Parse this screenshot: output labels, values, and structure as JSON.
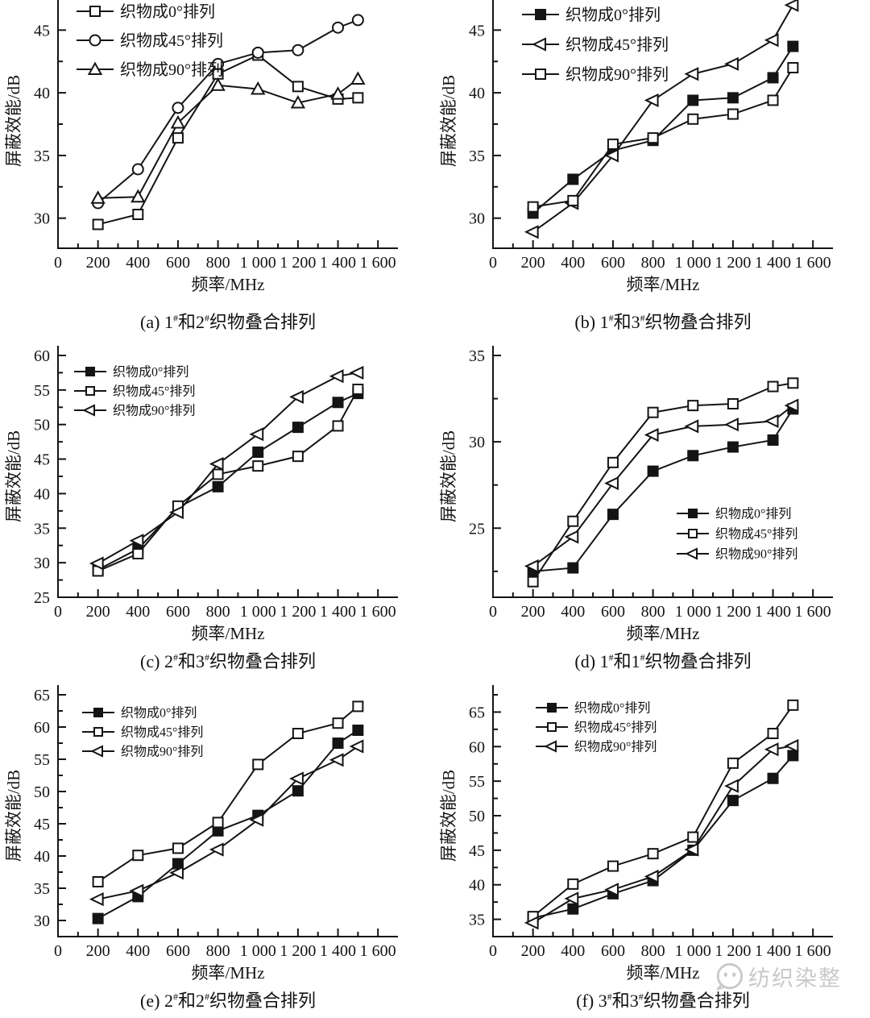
{
  "figure": {
    "background": "#ffffff",
    "line_color": "#141414",
    "watermark": {
      "icon": "wechat-account-icon",
      "text": "纺织染整",
      "color": "#c9c9c9"
    }
  },
  "chart_data": [
    {
      "id": "a",
      "type": "line",
      "caption": {
        "prefix": "(a) ",
        "f1": "1",
        "sup1": "#",
        "mid": "和",
        "f2": "2",
        "sup2": "#",
        "suffix": "织物叠合排列"
      },
      "xlabel": "频率/MHz",
      "ylabel": "屏蔽效能/dB",
      "x": [
        200,
        400,
        600,
        800,
        1000,
        1200,
        1400,
        1500
      ],
      "xlim": [
        0,
        1700
      ],
      "xticks": [
        0,
        200,
        400,
        600,
        800,
        1000,
        1200,
        1400,
        1600
      ],
      "ylim": [
        27.6,
        47.4
      ],
      "yticks": [
        30,
        35,
        40,
        45
      ],
      "grid": false,
      "legend_pos": "top-left",
      "series": [
        {
          "name": "织物成0°排列",
          "marker": "square-open",
          "values": [
            29.5,
            30.3,
            36.4,
            41.5,
            43.0,
            40.5,
            39.5,
            39.6
          ]
        },
        {
          "name": "织物成45°排列",
          "marker": "circle-open",
          "values": [
            31.2,
            33.9,
            38.8,
            42.3,
            43.2,
            43.4,
            45.2,
            45.8
          ]
        },
        {
          "name": "织物成90°排列",
          "marker": "triangle-up-open",
          "values": [
            31.6,
            31.7,
            37.6,
            40.6,
            40.3,
            39.2,
            39.9,
            41.1
          ]
        }
      ]
    },
    {
      "id": "b",
      "type": "line",
      "caption": {
        "prefix": "(b) ",
        "f1": "1",
        "sup1": "#",
        "mid": "和",
        "f2": "3",
        "sup2": "#",
        "suffix": "织物叠合排列"
      },
      "xlabel": "频率/MHz",
      "ylabel": "屏蔽效能/dB",
      "x": [
        200,
        400,
        600,
        800,
        1000,
        1200,
        1400,
        1500
      ],
      "xlim": [
        0,
        1700
      ],
      "xticks": [
        0,
        200,
        400,
        600,
        800,
        1000,
        1200,
        1400,
        1600
      ],
      "ylim": [
        27.6,
        47.4
      ],
      "yticks": [
        30,
        35,
        40,
        45
      ],
      "grid": false,
      "legend_pos": "top-left",
      "series": [
        {
          "name": "织物成0°排列",
          "marker": "square-filled",
          "values": [
            30.4,
            33.1,
            35.4,
            36.2,
            39.4,
            39.6,
            41.2,
            43.7
          ]
        },
        {
          "name": "织物成45°排列",
          "marker": "triangle-left-open",
          "values": [
            28.9,
            31.2,
            35.0,
            39.4,
            41.5,
            42.3,
            44.2,
            47.0
          ]
        },
        {
          "name": "织物成90°排列",
          "marker": "square-open",
          "values": [
            30.9,
            31.4,
            35.9,
            36.4,
            37.9,
            38.3,
            39.4,
            42.0
          ]
        }
      ]
    },
    {
      "id": "c",
      "type": "line",
      "caption": {
        "prefix": "(c) ",
        "f1": "2",
        "sup1": "#",
        "mid": "和",
        "f2": "3",
        "sup2": "#",
        "suffix": "织物叠合排列"
      },
      "xlabel": "频率/MHz",
      "ylabel": "屏蔽效能/dB",
      "x": [
        200,
        400,
        600,
        800,
        1000,
        1200,
        1400,
        1500
      ],
      "xlim": [
        0,
        1700
      ],
      "xticks": [
        0,
        200,
        400,
        600,
        800,
        1000,
        1200,
        1400,
        1600
      ],
      "ylim": [
        25,
        60
      ],
      "yticks": [
        25,
        30,
        35,
        40,
        45,
        50,
        55,
        60
      ],
      "grid": false,
      "legend_pos": "top-left",
      "series": [
        {
          "name": "织物成0°排列",
          "marker": "square-filled",
          "values": [
            29.0,
            32.0,
            38.0,
            41.0,
            46.0,
            49.6,
            53.2,
            54.5
          ]
        },
        {
          "name": "织物成45°排列",
          "marker": "square-open",
          "values": [
            28.8,
            31.3,
            38.2,
            42.8,
            44.0,
            45.4,
            49.8,
            55.1
          ]
        },
        {
          "name": "织物成90°排列",
          "marker": "triangle-left-open",
          "values": [
            29.9,
            33.2,
            37.3,
            44.3,
            48.6,
            54.0,
            57.0,
            57.5
          ]
        }
      ]
    },
    {
      "id": "d",
      "type": "line",
      "caption": {
        "prefix": "(d) ",
        "f1": "1",
        "sup1": "#",
        "mid": "和",
        "f2": "1",
        "sup2": "#",
        "suffix": "织物叠合排列"
      },
      "xlabel": "频率/MHz",
      "ylabel": "屏蔽效能/dB",
      "x": [
        200,
        400,
        600,
        800,
        1000,
        1200,
        1400,
        1500
      ],
      "xlim": [
        0,
        1700
      ],
      "xticks": [
        0,
        200,
        400,
        600,
        800,
        1000,
        1200,
        1400,
        1600
      ],
      "ylim": [
        21,
        35
      ],
      "yticks": [
        25,
        30,
        35
      ],
      "grid": false,
      "legend_pos": "middle-right",
      "series": [
        {
          "name": "织物成0°排列",
          "marker": "square-filled",
          "values": [
            22.5,
            22.7,
            25.8,
            28.3,
            29.2,
            29.7,
            30.1,
            31.9
          ]
        },
        {
          "name": "织物成45°排列",
          "marker": "square-open",
          "values": [
            21.9,
            25.4,
            28.8,
            31.7,
            32.1,
            32.2,
            33.2,
            33.4
          ]
        },
        {
          "name": "织物成90°排列",
          "marker": "triangle-left-open",
          "values": [
            22.8,
            24.5,
            27.6,
            30.4,
            30.9,
            31.0,
            31.2,
            32.1
          ]
        }
      ]
    },
    {
      "id": "e",
      "type": "line",
      "caption": {
        "prefix": "(e) ",
        "f1": "2",
        "sup1": "#",
        "mid": "和",
        "f2": "2",
        "sup2": "#",
        "suffix": "织物叠合排列"
      },
      "xlabel": "频率/MHz",
      "ylabel": "屏蔽效能/dB",
      "x": [
        200,
        400,
        600,
        800,
        1000,
        1200,
        1400,
        1500
      ],
      "xlim": [
        0,
        1700
      ],
      "xticks": [
        0,
        200,
        400,
        600,
        800,
        1000,
        1200,
        1400,
        1600
      ],
      "ylim": [
        27.5,
        65
      ],
      "yticks": [
        30,
        35,
        40,
        45,
        50,
        55,
        60,
        65
      ],
      "grid": false,
      "legend_pos": "top-left",
      "series": [
        {
          "name": "织物成0°排列",
          "marker": "square-filled",
          "values": [
            30.3,
            33.7,
            38.8,
            43.9,
            46.3,
            50.1,
            57.5,
            59.5
          ]
        },
        {
          "name": "织物成45°排列",
          "marker": "square-open",
          "values": [
            36.0,
            40.1,
            41.2,
            45.2,
            54.2,
            59.0,
            60.6,
            63.2
          ]
        },
        {
          "name": "织物成90°排列",
          "marker": "triangle-left-open",
          "values": [
            33.3,
            34.6,
            37.4,
            41.0,
            45.6,
            52.0,
            54.9,
            57.0
          ]
        }
      ]
    },
    {
      "id": "f",
      "type": "line",
      "caption": {
        "prefix": "(f) ",
        "f1": "3",
        "sup1": "#",
        "mid": "和",
        "f2": "3",
        "sup2": "#",
        "suffix": "织物叠合排列"
      },
      "xlabel": "频率/MHz",
      "ylabel": "屏蔽效能/dB",
      "x": [
        200,
        400,
        600,
        800,
        1000,
        1200,
        1400,
        1500
      ],
      "xlim": [
        0,
        1700
      ],
      "xticks": [
        0,
        200,
        400,
        600,
        800,
        1000,
        1200,
        1400,
        1600
      ],
      "ylim": [
        32.5,
        67.5
      ],
      "yticks": [
        35,
        40,
        45,
        50,
        55,
        60,
        65
      ],
      "grid": false,
      "legend_pos": "top-left",
      "series": [
        {
          "name": "织物成0°排列",
          "marker": "square-filled",
          "values": [
            35.2,
            36.5,
            38.7,
            40.6,
            45.0,
            52.2,
            55.4,
            58.7
          ]
        },
        {
          "name": "织物成45°排列",
          "marker": "square-open",
          "values": [
            35.4,
            40.1,
            42.7,
            44.5,
            46.9,
            57.6,
            61.9,
            66.0
          ]
        },
        {
          "name": "织物成90°排列",
          "marker": "triangle-left-open",
          "values": [
            34.5,
            38.0,
            39.3,
            41.2,
            45.1,
            54.3,
            59.6,
            60.1
          ]
        }
      ]
    }
  ]
}
